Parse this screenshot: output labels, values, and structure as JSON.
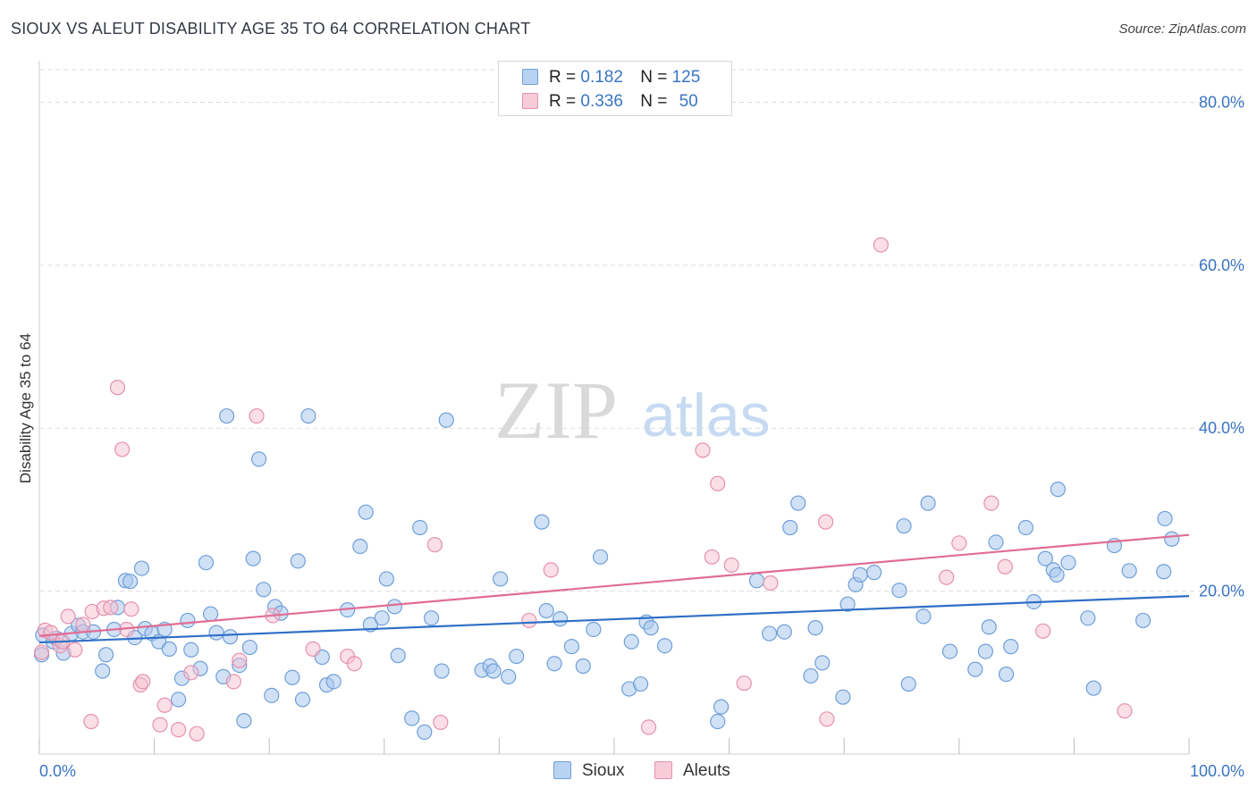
{
  "title": "SIOUX VS ALEUT DISABILITY AGE 35 TO 64 CORRELATION CHART",
  "source": "Source: ZipAtlas.com",
  "watermark": {
    "zip": "ZIP",
    "atlas": "atlas"
  },
  "legend": {
    "rows": [
      {
        "r_label": "R =",
        "r_value": "0.182",
        "n_label": "N =",
        "n_value": "125"
      },
      {
        "r_label": "R =",
        "r_value": "0.336",
        "n_label": "N =",
        "n_value": "50"
      }
    ]
  },
  "bottom_legend": {
    "sioux": "Sioux",
    "aleuts": "Aleuts"
  },
  "colors": {
    "sioux_fill": "#aac8ee",
    "sioux_stroke": "#6f9fd8",
    "sioux_line": "#2f6fc6",
    "aleut_fill": "#f6c0d0",
    "aleut_stroke": "#e690ad",
    "aleut_line": "#e06d95",
    "tick_label": "#3a74c4",
    "grid": "#dcdcdc"
  },
  "chart_data": {
    "type": "scatter",
    "title": "SIOUX VS ALEUT DISABILITY AGE 35 TO 64 CORRELATION CHART",
    "xlabel": "",
    "ylabel": "Disability Age 35 to 64",
    "xlim": [
      0,
      100
    ],
    "ylim": [
      0,
      84
    ],
    "x_tick_labels": [
      "0.0%",
      "100.0%"
    ],
    "y_ticks": [
      20,
      40,
      60,
      80
    ],
    "y_tick_labels": [
      "20.0%",
      "40.0%",
      "60.0%",
      "80.0%"
    ],
    "grid": true,
    "legend_position": "top-center",
    "series": [
      {
        "name": "Sioux",
        "r": 0.182,
        "n": 125,
        "trend": {
          "x": [
            0,
            100
          ],
          "y": [
            13.7,
            19.4
          ]
        },
        "points": [
          [
            0.2,
            12.2
          ],
          [
            0.3,
            14.6
          ],
          [
            1.2,
            13.8
          ],
          [
            1.5,
            14.2
          ],
          [
            2.1,
            12.4
          ],
          [
            2.8,
            14.8
          ],
          [
            3.4,
            15.8
          ],
          [
            3.8,
            15.0
          ],
          [
            4.7,
            15.0
          ],
          [
            5.5,
            10.2
          ],
          [
            5.8,
            12.2
          ],
          [
            6.5,
            15.3
          ],
          [
            6.8,
            18.0
          ],
          [
            7.5,
            21.3
          ],
          [
            7.9,
            21.2
          ],
          [
            8.3,
            14.3
          ],
          [
            8.9,
            22.8
          ],
          [
            9.2,
            15.4
          ],
          [
            9.8,
            14.8
          ],
          [
            10.4,
            13.8
          ],
          [
            10.9,
            15.3
          ],
          [
            11.3,
            12.9
          ],
          [
            12.1,
            6.7
          ],
          [
            12.4,
            9.3
          ],
          [
            12.9,
            16.4
          ],
          [
            13.2,
            12.8
          ],
          [
            14.0,
            10.5
          ],
          [
            14.5,
            23.5
          ],
          [
            14.9,
            17.2
          ],
          [
            15.4,
            14.9
          ],
          [
            16.0,
            9.5
          ],
          [
            16.3,
            41.5
          ],
          [
            16.6,
            14.4
          ],
          [
            17.4,
            10.9
          ],
          [
            17.8,
            4.1
          ],
          [
            18.3,
            13.1
          ],
          [
            18.6,
            24.0
          ],
          [
            19.1,
            36.2
          ],
          [
            19.5,
            20.2
          ],
          [
            20.2,
            7.2
          ],
          [
            20.5,
            18.1
          ],
          [
            21.0,
            17.3
          ],
          [
            22.0,
            9.4
          ],
          [
            22.5,
            23.7
          ],
          [
            22.9,
            6.7
          ],
          [
            23.4,
            41.5
          ],
          [
            24.6,
            11.9
          ],
          [
            25.0,
            8.5
          ],
          [
            25.6,
            8.9
          ],
          [
            26.8,
            17.7
          ],
          [
            27.9,
            25.5
          ],
          [
            28.4,
            29.7
          ],
          [
            28.8,
            15.9
          ],
          [
            29.8,
            16.7
          ],
          [
            30.2,
            21.5
          ],
          [
            30.9,
            18.1
          ],
          [
            31.2,
            12.1
          ],
          [
            32.4,
            4.4
          ],
          [
            33.1,
            27.8
          ],
          [
            33.5,
            2.7
          ],
          [
            34.1,
            16.7
          ],
          [
            35.0,
            10.2
          ],
          [
            35.4,
            41.0
          ],
          [
            38.5,
            10.3
          ],
          [
            39.2,
            10.8
          ],
          [
            39.5,
            10.2
          ],
          [
            40.1,
            21.5
          ],
          [
            40.8,
            9.5
          ],
          [
            41.5,
            12.0
          ],
          [
            43.7,
            28.5
          ],
          [
            44.1,
            17.6
          ],
          [
            44.8,
            11.1
          ],
          [
            45.3,
            16.6
          ],
          [
            46.3,
            13.2
          ],
          [
            47.3,
            10.8
          ],
          [
            48.2,
            15.3
          ],
          [
            48.8,
            24.2
          ],
          [
            51.3,
            8.0
          ],
          [
            51.5,
            13.8
          ],
          [
            52.3,
            8.6
          ],
          [
            52.8,
            16.2
          ],
          [
            53.2,
            15.5
          ],
          [
            54.4,
            13.3
          ],
          [
            59.0,
            4.0
          ],
          [
            59.3,
            5.8
          ],
          [
            62.4,
            21.3
          ],
          [
            63.5,
            14.8
          ],
          [
            64.8,
            15.0
          ],
          [
            65.3,
            27.8
          ],
          [
            66.0,
            30.8
          ],
          [
            67.1,
            9.6
          ],
          [
            67.5,
            15.5
          ],
          [
            68.1,
            11.2
          ],
          [
            69.9,
            7.0
          ],
          [
            70.3,
            18.4
          ],
          [
            71.0,
            20.8
          ],
          [
            71.4,
            22.0
          ],
          [
            72.6,
            22.3
          ],
          [
            74.8,
            20.1
          ],
          [
            75.2,
            28.0
          ],
          [
            75.6,
            8.6
          ],
          [
            76.9,
            16.9
          ],
          [
            77.3,
            30.8
          ],
          [
            79.2,
            12.6
          ],
          [
            81.4,
            10.4
          ],
          [
            82.3,
            12.6
          ],
          [
            82.6,
            15.6
          ],
          [
            83.2,
            26.0
          ],
          [
            84.1,
            9.8
          ],
          [
            84.5,
            13.2
          ],
          [
            85.8,
            27.8
          ],
          [
            86.5,
            18.7
          ],
          [
            87.5,
            24.0
          ],
          [
            88.2,
            22.6
          ],
          [
            88.5,
            22.0
          ],
          [
            88.6,
            32.5
          ],
          [
            89.5,
            23.5
          ],
          [
            91.2,
            16.7
          ],
          [
            91.7,
            8.1
          ],
          [
            93.5,
            25.6
          ],
          [
            94.8,
            22.5
          ],
          [
            96.0,
            16.4
          ],
          [
            97.8,
            22.4
          ],
          [
            97.9,
            28.9
          ],
          [
            98.5,
            26.4
          ]
        ]
      },
      {
        "name": "Aleuts",
        "r": 0.336,
        "n": 50,
        "trend": {
          "x": [
            0,
            100
          ],
          "y": [
            14.5,
            26.9
          ]
        },
        "points": [
          [
            0.2,
            12.5
          ],
          [
            0.5,
            15.2
          ],
          [
            1.0,
            14.9
          ],
          [
            1.8,
            13.3
          ],
          [
            2.0,
            13.8
          ],
          [
            2.5,
            16.9
          ],
          [
            3.1,
            12.8
          ],
          [
            3.8,
            15.9
          ],
          [
            4.5,
            4.0
          ],
          [
            4.6,
            17.5
          ],
          [
            5.6,
            17.9
          ],
          [
            6.2,
            18.0
          ],
          [
            6.8,
            45.0
          ],
          [
            7.2,
            37.4
          ],
          [
            7.6,
            15.3
          ],
          [
            8.0,
            17.8
          ],
          [
            8.8,
            8.5
          ],
          [
            9.0,
            8.9
          ],
          [
            10.5,
            3.6
          ],
          [
            10.9,
            6.0
          ],
          [
            12.1,
            3.0
          ],
          [
            13.2,
            10.0
          ],
          [
            13.7,
            2.5
          ],
          [
            16.9,
            8.9
          ],
          [
            17.4,
            11.5
          ],
          [
            18.9,
            41.5
          ],
          [
            20.3,
            17.0
          ],
          [
            23.8,
            12.9
          ],
          [
            26.8,
            12.0
          ],
          [
            27.4,
            11.1
          ],
          [
            34.4,
            25.7
          ],
          [
            34.9,
            3.9
          ],
          [
            42.6,
            16.4
          ],
          [
            44.5,
            22.6
          ],
          [
            53.0,
            3.3
          ],
          [
            57.7,
            37.3
          ],
          [
            58.5,
            24.2
          ],
          [
            59.0,
            33.2
          ],
          [
            60.2,
            23.2
          ],
          [
            61.3,
            8.7
          ],
          [
            63.6,
            21.0
          ],
          [
            68.4,
            28.5
          ],
          [
            68.5,
            4.3
          ],
          [
            73.2,
            62.5
          ],
          [
            78.9,
            21.7
          ],
          [
            80.0,
            25.9
          ],
          [
            82.8,
            30.8
          ],
          [
            84.0,
            23.0
          ],
          [
            87.3,
            15.1
          ],
          [
            94.4,
            5.3
          ]
        ]
      }
    ]
  }
}
